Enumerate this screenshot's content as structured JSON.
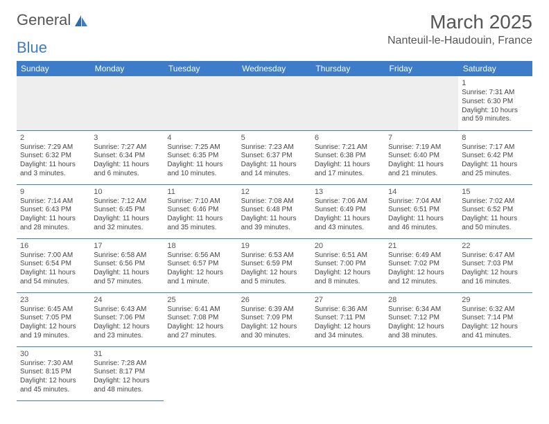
{
  "brand": {
    "word1": "General",
    "word2": "Blue",
    "text_color": "#555555",
    "accent_color": "#3d7cc9"
  },
  "title": "March 2025",
  "location": "Nanteuil-le-Haudouin, France",
  "colors": {
    "header_bg": "#3d7cc9",
    "header_text": "#ffffff",
    "cell_border": "#3d7cc9",
    "empty_row_bg": "#eeeeee"
  },
  "day_headers": [
    "Sunday",
    "Monday",
    "Tuesday",
    "Wednesday",
    "Thursday",
    "Friday",
    "Saturday"
  ],
  "weeks": [
    [
      null,
      null,
      null,
      null,
      null,
      null,
      {
        "n": "1",
        "sr": "Sunrise: 7:31 AM",
        "ss": "Sunset: 6:30 PM",
        "dl": "Daylight: 10 hours and 59 minutes."
      }
    ],
    [
      {
        "n": "2",
        "sr": "Sunrise: 7:29 AM",
        "ss": "Sunset: 6:32 PM",
        "dl": "Daylight: 11 hours and 3 minutes."
      },
      {
        "n": "3",
        "sr": "Sunrise: 7:27 AM",
        "ss": "Sunset: 6:34 PM",
        "dl": "Daylight: 11 hours and 6 minutes."
      },
      {
        "n": "4",
        "sr": "Sunrise: 7:25 AM",
        "ss": "Sunset: 6:35 PM",
        "dl": "Daylight: 11 hours and 10 minutes."
      },
      {
        "n": "5",
        "sr": "Sunrise: 7:23 AM",
        "ss": "Sunset: 6:37 PM",
        "dl": "Daylight: 11 hours and 14 minutes."
      },
      {
        "n": "6",
        "sr": "Sunrise: 7:21 AM",
        "ss": "Sunset: 6:38 PM",
        "dl": "Daylight: 11 hours and 17 minutes."
      },
      {
        "n": "7",
        "sr": "Sunrise: 7:19 AM",
        "ss": "Sunset: 6:40 PM",
        "dl": "Daylight: 11 hours and 21 minutes."
      },
      {
        "n": "8",
        "sr": "Sunrise: 7:17 AM",
        "ss": "Sunset: 6:42 PM",
        "dl": "Daylight: 11 hours and 25 minutes."
      }
    ],
    [
      {
        "n": "9",
        "sr": "Sunrise: 7:14 AM",
        "ss": "Sunset: 6:43 PM",
        "dl": "Daylight: 11 hours and 28 minutes."
      },
      {
        "n": "10",
        "sr": "Sunrise: 7:12 AM",
        "ss": "Sunset: 6:45 PM",
        "dl": "Daylight: 11 hours and 32 minutes."
      },
      {
        "n": "11",
        "sr": "Sunrise: 7:10 AM",
        "ss": "Sunset: 6:46 PM",
        "dl": "Daylight: 11 hours and 35 minutes."
      },
      {
        "n": "12",
        "sr": "Sunrise: 7:08 AM",
        "ss": "Sunset: 6:48 PM",
        "dl": "Daylight: 11 hours and 39 minutes."
      },
      {
        "n": "13",
        "sr": "Sunrise: 7:06 AM",
        "ss": "Sunset: 6:49 PM",
        "dl": "Daylight: 11 hours and 43 minutes."
      },
      {
        "n": "14",
        "sr": "Sunrise: 7:04 AM",
        "ss": "Sunset: 6:51 PM",
        "dl": "Daylight: 11 hours and 46 minutes."
      },
      {
        "n": "15",
        "sr": "Sunrise: 7:02 AM",
        "ss": "Sunset: 6:52 PM",
        "dl": "Daylight: 11 hours and 50 minutes."
      }
    ],
    [
      {
        "n": "16",
        "sr": "Sunrise: 7:00 AM",
        "ss": "Sunset: 6:54 PM",
        "dl": "Daylight: 11 hours and 54 minutes."
      },
      {
        "n": "17",
        "sr": "Sunrise: 6:58 AM",
        "ss": "Sunset: 6:56 PM",
        "dl": "Daylight: 11 hours and 57 minutes."
      },
      {
        "n": "18",
        "sr": "Sunrise: 6:56 AM",
        "ss": "Sunset: 6:57 PM",
        "dl": "Daylight: 12 hours and 1 minute."
      },
      {
        "n": "19",
        "sr": "Sunrise: 6:53 AM",
        "ss": "Sunset: 6:59 PM",
        "dl": "Daylight: 12 hours and 5 minutes."
      },
      {
        "n": "20",
        "sr": "Sunrise: 6:51 AM",
        "ss": "Sunset: 7:00 PM",
        "dl": "Daylight: 12 hours and 8 minutes."
      },
      {
        "n": "21",
        "sr": "Sunrise: 6:49 AM",
        "ss": "Sunset: 7:02 PM",
        "dl": "Daylight: 12 hours and 12 minutes."
      },
      {
        "n": "22",
        "sr": "Sunrise: 6:47 AM",
        "ss": "Sunset: 7:03 PM",
        "dl": "Daylight: 12 hours and 16 minutes."
      }
    ],
    [
      {
        "n": "23",
        "sr": "Sunrise: 6:45 AM",
        "ss": "Sunset: 7:05 PM",
        "dl": "Daylight: 12 hours and 19 minutes."
      },
      {
        "n": "24",
        "sr": "Sunrise: 6:43 AM",
        "ss": "Sunset: 7:06 PM",
        "dl": "Daylight: 12 hours and 23 minutes."
      },
      {
        "n": "25",
        "sr": "Sunrise: 6:41 AM",
        "ss": "Sunset: 7:08 PM",
        "dl": "Daylight: 12 hours and 27 minutes."
      },
      {
        "n": "26",
        "sr": "Sunrise: 6:39 AM",
        "ss": "Sunset: 7:09 PM",
        "dl": "Daylight: 12 hours and 30 minutes."
      },
      {
        "n": "27",
        "sr": "Sunrise: 6:36 AM",
        "ss": "Sunset: 7:11 PM",
        "dl": "Daylight: 12 hours and 34 minutes."
      },
      {
        "n": "28",
        "sr": "Sunrise: 6:34 AM",
        "ss": "Sunset: 7:12 PM",
        "dl": "Daylight: 12 hours and 38 minutes."
      },
      {
        "n": "29",
        "sr": "Sunrise: 6:32 AM",
        "ss": "Sunset: 7:14 PM",
        "dl": "Daylight: 12 hours and 41 minutes."
      }
    ],
    [
      {
        "n": "30",
        "sr": "Sunrise: 7:30 AM",
        "ss": "Sunset: 8:15 PM",
        "dl": "Daylight: 12 hours and 45 minutes."
      },
      {
        "n": "31",
        "sr": "Sunrise: 7:28 AM",
        "ss": "Sunset: 8:17 PM",
        "dl": "Daylight: 12 hours and 48 minutes."
      },
      null,
      null,
      null,
      null,
      null
    ]
  ]
}
